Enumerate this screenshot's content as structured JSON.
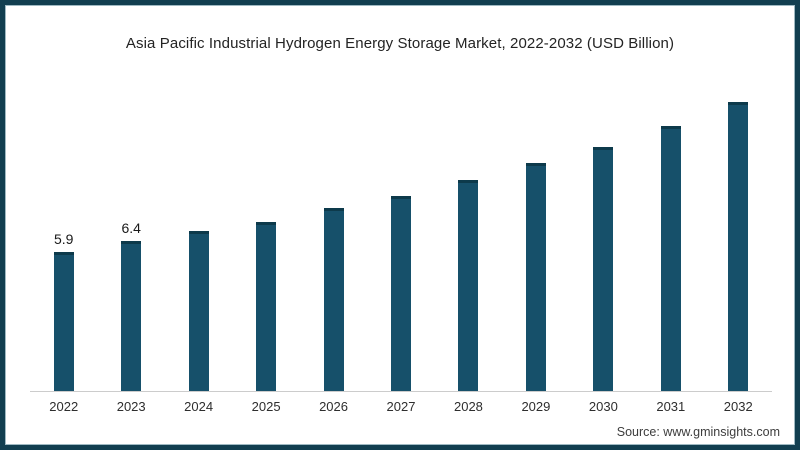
{
  "page": {
    "title": "Asia Pacific Industrial Hydrogen Energy Storage Market, 2022-2032 (USD Billion)"
  },
  "footer": {
    "source": "Source: www.gminsights.com"
  },
  "chart_data": {
    "type": "bar",
    "title": "Asia Pacific Industrial Hydrogen Energy Storage Market, 2022-2032 (USD Billion)",
    "categories": [
      "2022",
      "2023",
      "2024",
      "2025",
      "2026",
      "2027",
      "2028",
      "2029",
      "2030",
      "2031",
      "2032"
    ],
    "values": [
      5.9,
      6.4,
      6.8,
      7.2,
      7.8,
      8.3,
      9.0,
      9.7,
      10.4,
      11.3,
      12.3
    ],
    "data_labels": [
      "5.9",
      "6.4",
      "",
      "",
      "",
      "",
      "",
      "",
      "",
      "",
      ""
    ],
    "xlabel": "",
    "ylabel": "",
    "ylim": [
      0,
      12.6
    ],
    "grid": false,
    "legend": false,
    "bar_color": "#16506a",
    "bar_cap_color": "#0d3a4b",
    "axis_line_color": "#cccccc",
    "frame_color": "#123e50"
  }
}
